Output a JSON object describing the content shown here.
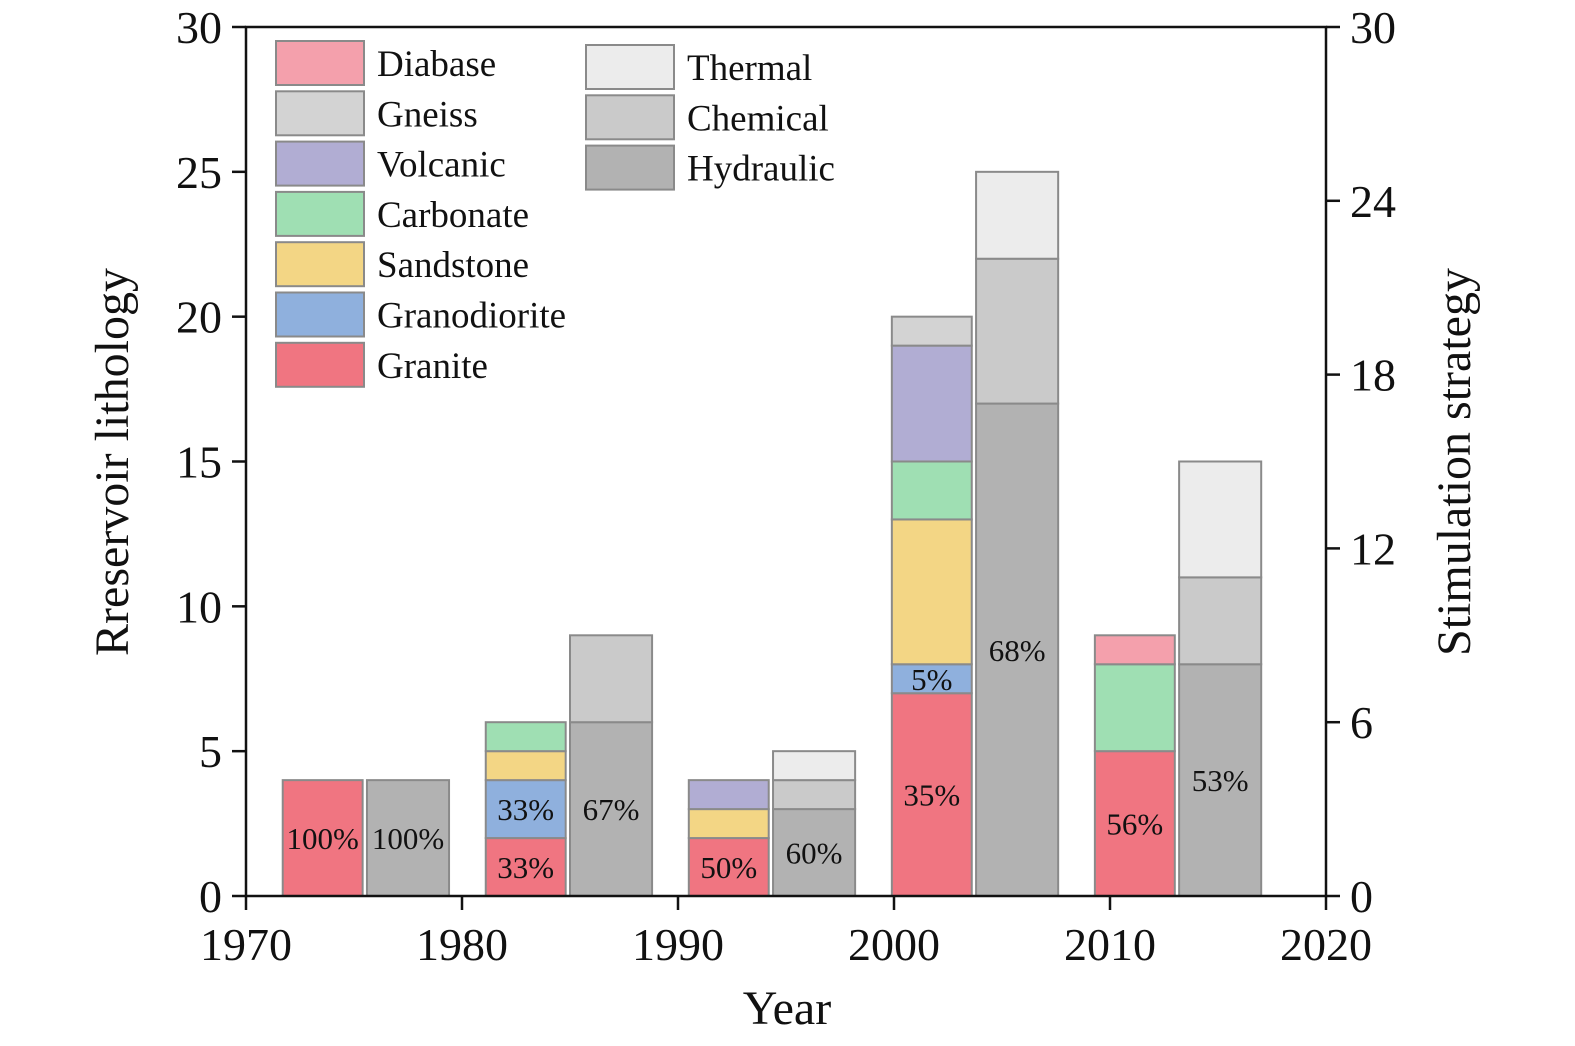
{
  "chart_data": {
    "type": "bar",
    "xlabel": "Year",
    "ylabel_left": "Rreservoir lithology",
    "ylabel_right": "Stimulation strategy",
    "xlim": [
      1970,
      2020
    ],
    "xticks": [
      1970,
      1980,
      1990,
      2000,
      2010,
      2020
    ],
    "ylim_left": [
      0,
      30
    ],
    "yticks_left": [
      0,
      5,
      10,
      15,
      20,
      25,
      30
    ],
    "ylim_right": [
      0,
      30
    ],
    "yticks_right": [
      0,
      6,
      12,
      18,
      24,
      30
    ],
    "legend_placement": "top-left",
    "lithology_series": [
      {
        "name": "Granite",
        "color": "#f07581"
      },
      {
        "name": "Granodiorite",
        "color": "#8fb0dd"
      },
      {
        "name": "Sandstone",
        "color": "#f3d685"
      },
      {
        "name": "Carbonate",
        "color": "#9fdfb3"
      },
      {
        "name": "Volcanic",
        "color": "#b1add3"
      },
      {
        "name": "Gneiss",
        "color": "#d3d3d3"
      },
      {
        "name": "Diabase",
        "color": "#f4a0ac"
      }
    ],
    "strategy_series": [
      {
        "name": "Hydraulic",
        "color": "#b2b2b2"
      },
      {
        "name": "Chemical",
        "color": "#cacaca"
      },
      {
        "name": "Thermal",
        "color": "#ececec"
      }
    ],
    "legend_left_order": [
      "Diabase",
      "Gneiss",
      "Volcanic",
      "Carbonate",
      "Sandstone",
      "Granodiorite",
      "Granite"
    ],
    "legend_right_order": [
      "Thermal",
      "Chemical",
      "Hydraulic"
    ],
    "lithology_bars": [
      {
        "x_start": 1971.7,
        "x_end": 1975.4,
        "segments": [
          {
            "series": "Granite",
            "value": 4
          }
        ],
        "labels": [
          {
            "text": "100%",
            "series": "Granite"
          }
        ]
      },
      {
        "x_start": 1981.1,
        "x_end": 1984.8,
        "segments": [
          {
            "series": "Granite",
            "value": 2
          },
          {
            "series": "Granodiorite",
            "value": 2
          },
          {
            "series": "Sandstone",
            "value": 1
          },
          {
            "series": "Carbonate",
            "value": 1
          }
        ],
        "labels": [
          {
            "text": "33%",
            "series": "Granite"
          },
          {
            "text": "33%",
            "series": "Granodiorite"
          }
        ]
      },
      {
        "x_start": 1990.5,
        "x_end": 1994.2,
        "segments": [
          {
            "series": "Granite",
            "value": 2
          },
          {
            "series": "Sandstone",
            "value": 1
          },
          {
            "series": "Volcanic",
            "value": 1
          }
        ],
        "labels": [
          {
            "text": "50%",
            "series": "Granite"
          }
        ]
      },
      {
        "x_start": 1999.9,
        "x_end": 2003.6,
        "segments": [
          {
            "series": "Granite",
            "value": 7
          },
          {
            "series": "Granodiorite",
            "value": 1
          },
          {
            "series": "Sandstone",
            "value": 5
          },
          {
            "series": "Carbonate",
            "value": 2
          },
          {
            "series": "Volcanic",
            "value": 4
          },
          {
            "series": "Gneiss",
            "value": 1
          }
        ],
        "labels": [
          {
            "text": "35%",
            "series": "Granite"
          },
          {
            "text": "5%",
            "series": "Granodiorite"
          }
        ]
      },
      {
        "x_start": 2009.3,
        "x_end": 2013.0,
        "segments": [
          {
            "series": "Granite",
            "value": 5
          },
          {
            "series": "Carbonate",
            "value": 3
          },
          {
            "series": "Diabase",
            "value": 1
          }
        ],
        "labels": [
          {
            "text": "56%",
            "series": "Granite"
          }
        ]
      }
    ],
    "strategy_bars": [
      {
        "x_start": 1975.6,
        "x_end": 1979.4,
        "segments": [
          {
            "series": "Hydraulic",
            "value": 4
          }
        ],
        "labels": [
          {
            "text": "100%",
            "series": "Hydraulic"
          }
        ]
      },
      {
        "x_start": 1985.0,
        "x_end": 1988.8,
        "segments": [
          {
            "series": "Hydraulic",
            "value": 6
          },
          {
            "series": "Chemical",
            "value": 3
          }
        ],
        "labels": [
          {
            "text": "67%",
            "series": "Hydraulic"
          }
        ]
      },
      {
        "x_start": 1994.4,
        "x_end": 1998.2,
        "segments": [
          {
            "series": "Hydraulic",
            "value": 3
          },
          {
            "series": "Chemical",
            "value": 1
          },
          {
            "series": "Thermal",
            "value": 1
          }
        ],
        "labels": [
          {
            "text": "60%",
            "series": "Hydraulic"
          }
        ]
      },
      {
        "x_start": 2003.8,
        "x_end": 2007.6,
        "segments": [
          {
            "series": "Hydraulic",
            "value": 17
          },
          {
            "series": "Chemical",
            "value": 5
          },
          {
            "series": "Thermal",
            "value": 3
          }
        ],
        "labels": [
          {
            "text": "68%",
            "series": "Hydraulic"
          }
        ]
      },
      {
        "x_start": 2013.2,
        "x_end": 2017.0,
        "segments": [
          {
            "series": "Hydraulic",
            "value": 8
          },
          {
            "series": "Chemical",
            "value": 3
          },
          {
            "series": "Thermal",
            "value": 4
          }
        ],
        "labels": [
          {
            "text": "53%",
            "series": "Hydraulic"
          }
        ]
      }
    ]
  }
}
